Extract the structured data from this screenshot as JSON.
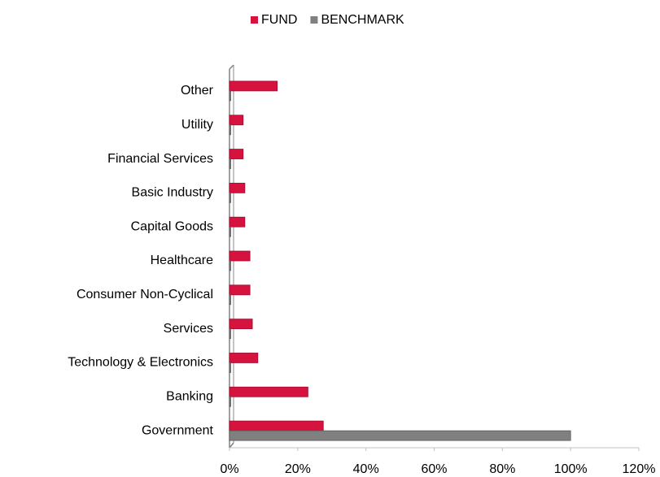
{
  "chart_data": {
    "type": "hbar",
    "categories": [
      "Government",
      "Banking",
      "Technology & Electronics",
      "Services",
      "Consumer Non-Cyclical",
      "Healthcare",
      "Capital Goods",
      "Basic Industry",
      "Financial Services",
      "Utility",
      "Other"
    ],
    "series": [
      {
        "name": "FUND",
        "color": "#d6133f",
        "values": [
          27.5,
          23,
          8.3,
          6.7,
          6,
          6,
          4.5,
          4.5,
          4,
          4,
          14
        ]
      },
      {
        "name": "BENCHMARK",
        "color": "#808080",
        "values": [
          100,
          0,
          0,
          0,
          0,
          0,
          0,
          0,
          0,
          0,
          0
        ]
      }
    ],
    "xlim": [
      0,
      120
    ],
    "xticks": [
      {
        "value": 0,
        "label": "0%"
      },
      {
        "value": 20,
        "label": "20%"
      },
      {
        "value": 40,
        "label": "40%"
      },
      {
        "value": 60,
        "label": "60%"
      },
      {
        "value": 80,
        "label": "80%"
      },
      {
        "value": 100,
        "label": "100%"
      },
      {
        "value": 120,
        "label": "120%"
      }
    ],
    "legend": "top"
  }
}
